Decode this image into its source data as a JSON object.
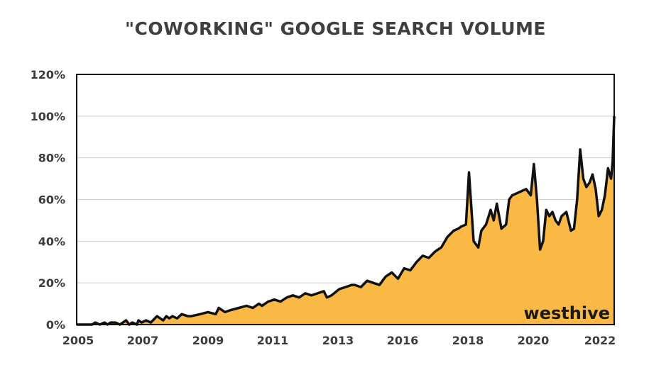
{
  "chart_data": {
    "type": "area",
    "title": "\"COWORKING\" GOOGLE SEARCH VOLUME",
    "xlabel": "",
    "ylabel": "",
    "ylim": [
      0,
      120
    ],
    "xlim": [
      2005.0,
      2022.4
    ],
    "x_tick_labels": [
      "2005",
      "2007",
      "2009",
      "2011",
      "2013",
      "2016",
      "2018",
      "2020",
      "2022"
    ],
    "y_tick_labels": [
      "0%",
      "20%",
      "40%",
      "60%",
      "80%",
      "100%",
      "120%"
    ],
    "y_tick_values": [
      0,
      20,
      40,
      60,
      80,
      100,
      120
    ],
    "grid": "horizontal",
    "fill_color": "#F9B944",
    "line_color": "#111111",
    "watermark": "westhive",
    "series": [
      {
        "x": [
          2005.0,
          2005.5,
          2005.6,
          2005.75,
          2005.9,
          2006.0,
          2006.1,
          2006.25,
          2006.4,
          2006.6,
          2006.7,
          2006.8,
          2006.95,
          2007.0,
          2007.1,
          2007.25,
          2007.4,
          2007.6,
          2007.7,
          2007.8,
          2007.9,
          2008.0,
          2008.1,
          2008.25,
          2008.4,
          2008.6,
          2008.7,
          2009.0,
          2009.25,
          2009.5,
          2009.6,
          2009.8,
          2010.0,
          2010.25,
          2010.5,
          2010.7,
          2010.9,
          2011.0,
          2011.2,
          2011.4,
          2011.6,
          2011.8,
          2012.0,
          2012.2,
          2012.4,
          2012.6,
          2012.8,
          2013.0,
          2013.1,
          2013.25,
          2013.5,
          2013.7,
          2013.9,
          2014.0,
          2014.2,
          2014.4,
          2014.6,
          2014.8,
          2015.0,
          2015.2,
          2015.4,
          2015.6,
          2015.8,
          2016.0,
          2016.2,
          2016.4,
          2016.6,
          2016.8,
          2017.0,
          2017.2,
          2017.35,
          2017.45,
          2017.6,
          2017.7,
          2017.85,
          2018.0,
          2018.1,
          2018.25,
          2018.4,
          2018.5,
          2018.6,
          2018.75,
          2018.9,
          2019.0,
          2019.1,
          2019.25,
          2019.4,
          2019.55,
          2019.7,
          2019.8,
          2019.9,
          2020.0,
          2020.1,
          2020.2,
          2020.3,
          2020.4,
          2020.5,
          2020.6,
          2020.7,
          2020.85,
          2021.0,
          2021.1,
          2021.2,
          2021.3,
          2021.4,
          2021.5,
          2021.6,
          2021.7,
          2021.8,
          2021.9,
          2022.0,
          2022.1,
          2022.2,
          2022.3,
          2022.35,
          2022.4
        ],
        "y": [
          0,
          0,
          1,
          0,
          1,
          0,
          1,
          1,
          0,
          2,
          0,
          1,
          0,
          2,
          1,
          2,
          1,
          4,
          3,
          2,
          4,
          3,
          4,
          3,
          5,
          4,
          4,
          5,
          6,
          5,
          8,
          6,
          7,
          8,
          9,
          8,
          10,
          9,
          11,
          12,
          11,
          13,
          14,
          13,
          15,
          14,
          15,
          16,
          13,
          14,
          17,
          18,
          19,
          19,
          18,
          21,
          20,
          19,
          23,
          25,
          22,
          27,
          26,
          30,
          33,
          32,
          35,
          37,
          42,
          45,
          46,
          47,
          48,
          73,
          40,
          37,
          45,
          48,
          55,
          50,
          58,
          46,
          48,
          60,
          62,
          63,
          64,
          65,
          62,
          77,
          60,
          36,
          40,
          55,
          52,
          54,
          50,
          48,
          52,
          54,
          45,
          46,
          60,
          84,
          70,
          66,
          68,
          72,
          65,
          52,
          55,
          62,
          75,
          70,
          78,
          100
        ]
      }
    ]
  }
}
